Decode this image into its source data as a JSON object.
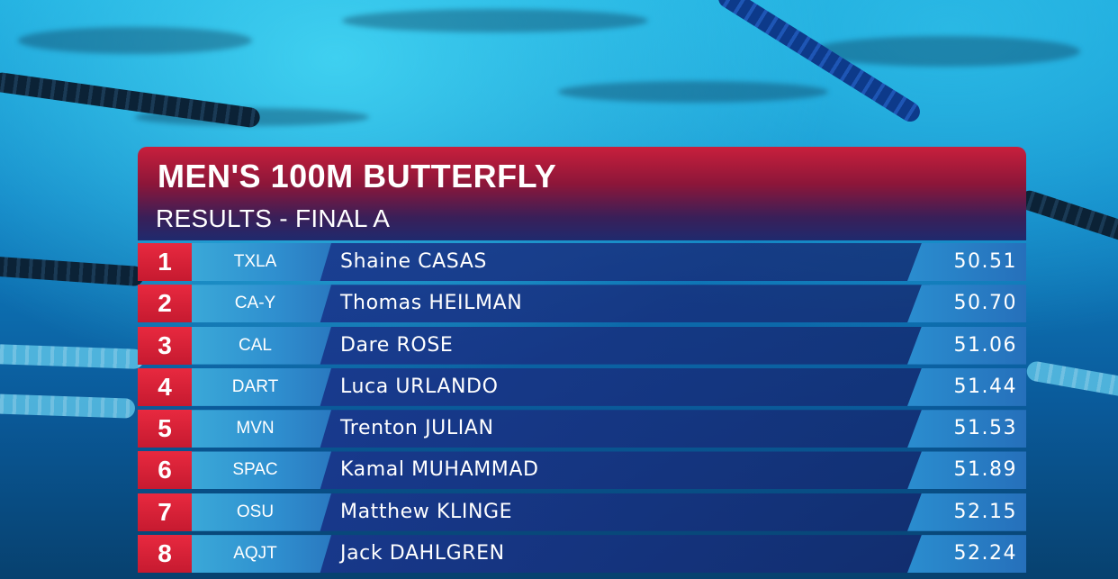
{
  "event": {
    "title": "MEN'S 100M BUTTERFLY",
    "subtitle": "RESULTS - FINAL A"
  },
  "results": [
    {
      "rank": "1",
      "team": "TXLA",
      "name": "Shaine CASAS",
      "time": "50.51"
    },
    {
      "rank": "2",
      "team": "CA-Y",
      "name": "Thomas HEILMAN",
      "time": "50.70"
    },
    {
      "rank": "3",
      "team": "CAL",
      "name": "Dare ROSE",
      "time": "51.06"
    },
    {
      "rank": "4",
      "team": "DART",
      "name": "Luca URLANDO",
      "time": "51.44"
    },
    {
      "rank": "5",
      "team": "MVN",
      "name": "Trenton JULIAN",
      "time": "51.53"
    },
    {
      "rank": "6",
      "team": "SPAC",
      "name": "Kamal MUHAMMAD",
      "time": "51.89"
    },
    {
      "rank": "7",
      "team": "OSU",
      "name": "Matthew KLINGE",
      "time": "52.15"
    },
    {
      "rank": "8",
      "team": "AQJT",
      "name": "Jack DAHLGREN",
      "time": "52.24"
    }
  ],
  "colors": {
    "rank_red": "#e8293f",
    "team_blue": "#2f8fcf",
    "name_navy": "#19378c",
    "header_red": "#c81f3c"
  }
}
